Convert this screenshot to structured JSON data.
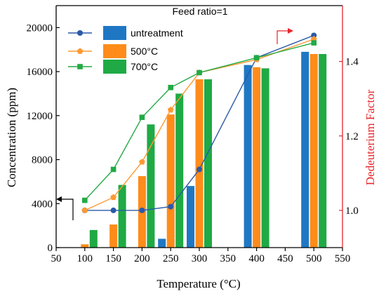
{
  "chart_data": {
    "type": "bar+line",
    "title": "Feed ratio=1",
    "xlabel": "Temperature (°C)",
    "ylabel": "Concentration (ppm)",
    "y2label": "Dedeuterium Factor",
    "xlim": [
      50,
      550
    ],
    "xticks": [
      50,
      100,
      150,
      200,
      250,
      300,
      350,
      400,
      450,
      500,
      550
    ],
    "ylim": [
      0,
      22000
    ],
    "yticks": [
      0,
      4000,
      8000,
      12000,
      16000,
      20000
    ],
    "y2lim": [
      0.9,
      1.55
    ],
    "y2ticks": [
      1.0,
      1.2,
      1.4
    ],
    "categories": [
      100,
      150,
      200,
      250,
      300,
      400,
      500
    ],
    "bar_series": [
      {
        "name": "untreatment",
        "color": "#1f77c4",
        "values": [
          0,
          0,
          0,
          800,
          5600,
          16600,
          17800
        ]
      },
      {
        "name": "500°C",
        "color": "#ff8c1a",
        "values": [
          300,
          2100,
          6500,
          12100,
          15300,
          16400,
          17600
        ]
      },
      {
        "name": "700°C",
        "color": "#1faa45",
        "values": [
          1600,
          5700,
          11200,
          14000,
          15300,
          16300,
          17600
        ]
      }
    ],
    "line_series": [
      {
        "name": "untreatment",
        "color": "#2a5aa8",
        "marker": "circle",
        "x": [
          100,
          150,
          200,
          250,
          300,
          400,
          500
        ],
        "y": [
          1.0,
          1.0,
          1.0,
          1.01,
          1.11,
          1.41,
          1.47
        ]
      },
      {
        "name": "500°C",
        "color": "#ff9933",
        "marker": "pentagon",
        "x": [
          100,
          150,
          200,
          250,
          300,
          400,
          500
        ],
        "y": [
          1.0,
          1.035,
          1.13,
          1.27,
          1.37,
          1.405,
          1.46
        ]
      },
      {
        "name": "700°C",
        "color": "#22aa44",
        "marker": "square",
        "x": [
          100,
          150,
          200,
          250,
          300,
          400,
          500
        ],
        "y": [
          1.027,
          1.11,
          1.25,
          1.33,
          1.37,
          1.41,
          1.45
        ]
      }
    ],
    "legend": [
      "untreatment",
      "500°C",
      "700°C"
    ],
    "legend_position": "top-left",
    "grid": false
  }
}
